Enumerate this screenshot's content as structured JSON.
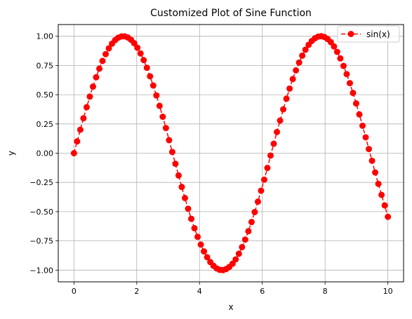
{
  "chart_data": {
    "type": "line",
    "title": "Customized Plot of Sine Function",
    "xlabel": "x",
    "ylabel": "y",
    "xlim": [
      -0.5,
      10.5
    ],
    "ylim": [
      -1.1,
      1.1
    ],
    "xticks": [
      0,
      2,
      4,
      6,
      8,
      10
    ],
    "xtick_labels": [
      "0",
      "2",
      "4",
      "6",
      "8",
      "10"
    ],
    "yticks": [
      -1.0,
      -0.75,
      -0.5,
      -0.25,
      0.0,
      0.25,
      0.5,
      0.75,
      1.0
    ],
    "ytick_labels": [
      "−1.00",
      "−0.75",
      "−0.50",
      "−0.25",
      "0.00",
      "0.25",
      "0.50",
      "0.75",
      "1.00"
    ],
    "grid": true,
    "legend_position": "top-right",
    "series": [
      {
        "name": "sin(x)",
        "color": "#ff0000",
        "line_style": "dashed",
        "marker": "circle",
        "x": [
          0.0,
          0.101,
          0.202,
          0.303,
          0.404,
          0.505,
          0.606,
          0.707,
          0.808,
          0.909,
          1.01,
          1.111,
          1.212,
          1.313,
          1.414,
          1.515,
          1.616,
          1.717,
          1.818,
          1.919,
          2.02,
          2.121,
          2.222,
          2.323,
          2.424,
          2.525,
          2.626,
          2.727,
          2.828,
          2.929,
          3.03,
          3.131,
          3.232,
          3.333,
          3.434,
          3.535,
          3.636,
          3.737,
          3.838,
          3.939,
          4.04,
          4.141,
          4.242,
          4.343,
          4.444,
          4.545,
          4.646,
          4.747,
          4.848,
          4.949,
          5.051,
          5.152,
          5.253,
          5.354,
          5.455,
          5.556,
          5.657,
          5.758,
          5.859,
          5.96,
          6.061,
          6.162,
          6.263,
          6.364,
          6.465,
          6.566,
          6.667,
          6.768,
          6.869,
          6.97,
          7.071,
          7.172,
          7.273,
          7.374,
          7.475,
          7.576,
          7.677,
          7.778,
          7.879,
          7.98,
          8.081,
          8.182,
          8.283,
          8.384,
          8.485,
          8.586,
          8.687,
          8.788,
          8.889,
          8.99,
          9.091,
          9.192,
          9.293,
          9.394,
          9.495,
          9.596,
          9.697,
          9.798,
          9.899,
          10.0
        ],
        "y": [
          0.0,
          0.1008,
          0.2006,
          0.2984,
          0.3931,
          0.4837,
          0.5693,
          0.6494,
          0.7228,
          0.7889,
          0.8469,
          0.8963,
          0.9365,
          0.9671,
          0.9878,
          0.9983,
          0.9989,
          0.9893,
          0.9697,
          0.9404,
          0.9016,
          0.8531,
          0.7958,
          0.7305,
          0.6574,
          0.5787,
          0.4939,
          0.4047,
          0.3114,
          0.2152,
          0.1113,
          0.0105,
          -0.0906,
          -0.1906,
          -0.2886,
          -0.3836,
          -0.4749,
          -0.5611,
          -0.6415,
          -0.7152,
          -0.7815,
          -0.8399,
          -0.8895,
          -0.9308,
          -0.9628,
          -0.9852,
          -0.9977,
          -0.9998,
          -0.9905,
          -0.9727,
          -0.9452,
          -0.9082,
          -0.8598,
          -0.8031,
          -0.7386,
          -0.6671,
          -0.5885,
          -0.5032,
          -0.4144,
          -0.3209,
          -0.2263,
          -0.1262,
          -0.0201,
          0.0808,
          0.1808,
          0.2788,
          0.3743,
          0.4659,
          0.5525,
          0.6338,
          0.7081,
          0.7751,
          0.8343,
          0.8846,
          0.9262,
          0.9595,
          0.9828,
          0.9966,
          1.0,
          0.9932,
          0.9763,
          0.9496,
          0.9124,
          0.8662,
          0.8107,
          0.7461,
          0.6759,
          0.5989,
          0.5151,
          0.4251,
          0.3316,
          0.2347,
          0.1357,
          0.0355,
          -0.0649,
          -0.1647,
          -0.2622,
          -0.3564,
          -0.4464,
          -0.544
        ]
      }
    ]
  }
}
